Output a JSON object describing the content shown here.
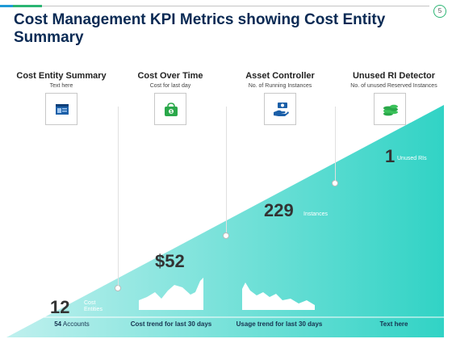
{
  "slide": {
    "title": "Cost Management KPI Metrics showing Cost Entity Summary",
    "page_badge": "5"
  },
  "colors": {
    "title": "#0a2a54",
    "teal_light": "#bff0ee",
    "teal_dark": "#31d3c5",
    "green_icon": "#2aa84a",
    "blue_icon": "#1b5fa8",
    "accent_bar": [
      "#1f9ad6",
      "#2bb573",
      "#c4c4c4"
    ]
  },
  "columns": [
    {
      "heading": "Cost Entity Summary",
      "subtext": "Text here",
      "icon": "browser-window-icon",
      "value": "12",
      "value_label": "Cost Entities",
      "footer_bold": "54",
      "footer_rest": " Accounts"
    },
    {
      "heading": "Cost Over Time",
      "subtext": "Cost for last day",
      "icon": "money-stack-icon",
      "value": "$52",
      "value_label": "",
      "footer_bold": "Cost trend for last 30 days",
      "footer_rest": ""
    },
    {
      "heading": "Asset Controller",
      "subtext": "No. of Running Instances",
      "icon": "money-hand-icon",
      "value": "229",
      "value_label": "Instances",
      "footer_bold": "Usage trend for last 30 days",
      "footer_rest": ""
    },
    {
      "heading": "Unused RI Detector",
      "subtext": "No. of unused Reserved Instances",
      "icon": "coins-icon",
      "value": "1",
      "value_label": "Unused RIs",
      "footer_bold": "Text here",
      "footer_rest": ""
    }
  ]
}
